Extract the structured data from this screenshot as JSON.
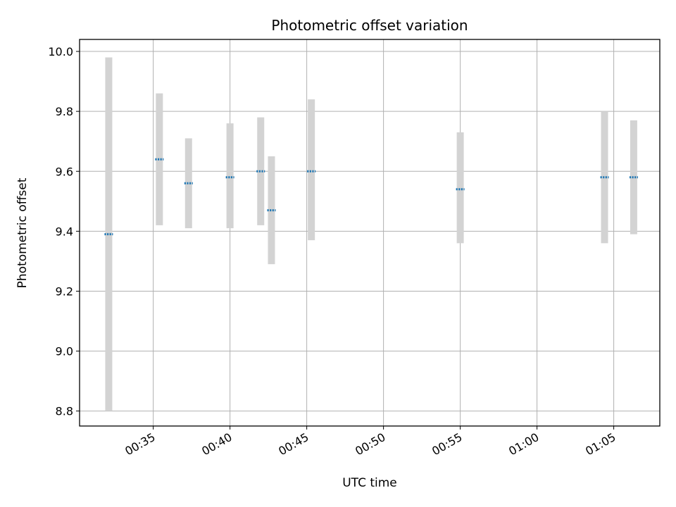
{
  "chart_data": {
    "type": "scatter",
    "title": "Photometric offset variation",
    "xlabel": "UTC time",
    "ylabel": "Photometric offset",
    "x_unit": "time HH:MM",
    "xlim": [
      "00:30:12",
      "01:08:00"
    ],
    "ylim": [
      8.75,
      10.04
    ],
    "x_ticks": [
      "00:35",
      "00:40",
      "00:45",
      "00:50",
      "00:55",
      "01:00",
      "01:05"
    ],
    "y_ticks": [
      "8.8",
      "9.0",
      "9.2",
      "9.4",
      "9.6",
      "9.8",
      "10.0"
    ],
    "grid": true,
    "marker_color": "#1f77b4",
    "errorbar_color": "#d3d3d3",
    "points": [
      {
        "x": "00:32:06",
        "y": 9.39,
        "ymin": 8.8,
        "ymax": 9.98
      },
      {
        "x": "00:35:24",
        "y": 9.64,
        "ymin": 9.42,
        "ymax": 9.86
      },
      {
        "x": "00:37:18",
        "y": 9.56,
        "ymin": 9.41,
        "ymax": 9.71
      },
      {
        "x": "00:40:00",
        "y": 9.58,
        "ymin": 9.41,
        "ymax": 9.76
      },
      {
        "x": "00:42:00",
        "y": 9.6,
        "ymin": 9.42,
        "ymax": 9.78
      },
      {
        "x": "00:42:42",
        "y": 9.47,
        "ymin": 9.29,
        "ymax": 9.65
      },
      {
        "x": "00:45:18",
        "y": 9.6,
        "ymin": 9.37,
        "ymax": 9.84
      },
      {
        "x": "00:55:00",
        "y": 9.54,
        "ymin": 9.36,
        "ymax": 9.73
      },
      {
        "x": "01:04:24",
        "y": 9.58,
        "ymin": 9.36,
        "ymax": 9.8
      },
      {
        "x": "01:06:18",
        "y": 9.58,
        "ymin": 9.39,
        "ymax": 9.77
      }
    ]
  }
}
